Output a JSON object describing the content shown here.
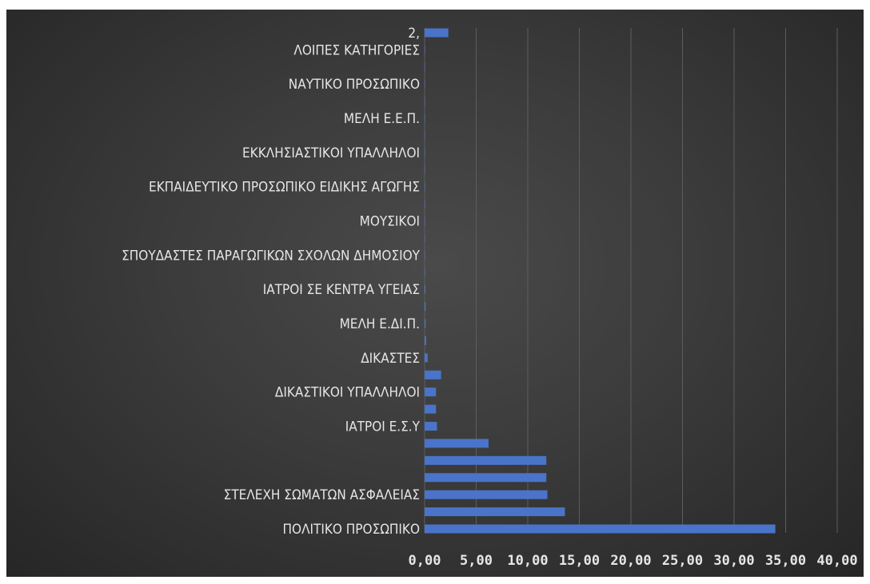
{
  "colors": {
    "bar": "#4a74c9",
    "background": "#3b3b3b",
    "text": "#e6e6e6",
    "grid": "#5d5d5d"
  },
  "chart_data": {
    "type": "bar",
    "orientation": "horizontal",
    "title": "",
    "xlabel": "",
    "ylabel": "",
    "xlim": [
      0,
      40
    ],
    "x_ticks": [
      "0,00",
      "5,00",
      "10,00",
      "15,00",
      "20,00",
      "25,00",
      "30,00",
      "35,00",
      "40,00"
    ],
    "grid": true,
    "legend": "none",
    "categories": [
      "ΠΟΛΙΤΙΚΟ ΠΡΟΣΩΠΙΚΟ",
      "",
      "ΣΤΕΛΕΧΗ ΣΩΜΑΤΩΝ ΑΣΦΑΛΕΙΑΣ",
      "",
      "",
      "",
      "ΙΑΤΡΟΙ Ε.Σ.Υ",
      "",
      "ΔΙΚΑΣΤΙΚΟΙ ΥΠΑΛΛΗΛΟΙ",
      "",
      "ΔΙΚΑΣΤΕΣ",
      "",
      "ΜΕΛΗ Ε.ΔΙ.Π.",
      "",
      "ΙΑΤΡΟΙ ΣΕ ΚΕΝΤΡΑ ΥΓΕΙΑΣ",
      "",
      "ΣΠΟΥΔΑΣΤΕΣ ΠΑΡΑΓΩΓΙΚΩΝ ΣΧΟΛΩΝ ΔΗΜΟΣΙΟΥ",
      "",
      "ΜΟΥΣΙΚΟΙ",
      "",
      "ΕΚΠΑΙΔΕΥΤΙΚΟ ΠΡΟΣΩΠΙΚΟ ΕΙΔΙΚΗΣ ΑΓΩΓΗΣ",
      "",
      "ΕΚΚΛΗΣΙΑΣΤΙΚΟΙ ΥΠΑΛΛΗΛΟΙ",
      "",
      "ΜΕΛΗ Ε.Ε.Π.",
      "",
      "ΝΑΥΤΙΚΟ ΠΡΟΣΩΠΙΚΟ",
      "",
      "ΛΟΙΠΕΣ ΚΑΤΗΓΟΡΙΕΣ",
      "2,"
    ],
    "values": [
      34.0,
      13.6,
      11.9,
      11.8,
      11.8,
      6.2,
      1.2,
      1.1,
      1.1,
      1.6,
      0.3,
      0.15,
      0.1,
      0.1,
      0.08,
      0.05,
      0.05,
      0.04,
      0.04,
      0.03,
      0.03,
      0.03,
      0.02,
      0.02,
      0.02,
      0.02,
      0.02,
      0.01,
      0.01,
      2.3
    ]
  }
}
